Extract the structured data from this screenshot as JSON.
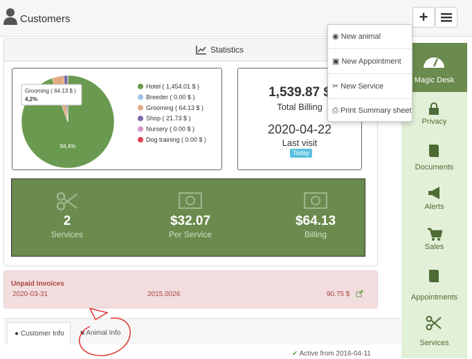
{
  "header": {
    "title": "Customers"
  },
  "menu": {
    "items": [
      "New animal",
      "New Appointment",
      "New Service",
      "Print Summary sheet"
    ]
  },
  "sidebar": {
    "items": [
      "Magic Desk",
      "Privacy",
      "Documents",
      "Alerts",
      "Sales",
      "Appointments",
      "Services"
    ]
  },
  "statistics": {
    "title": "Statistics",
    "chart_data": {
      "type": "pie",
      "legend_labels": [
        "Hotel ( 1,454.01 $ )",
        "Breeder ( 0.00 $ )",
        "Grooming ( 64.13 $ )",
        "Shop ( 21.73 $ )",
        "Nursery ( 0.00 $ )",
        "Dog training ( 0.00 $ )"
      ],
      "values": [
        1454.01,
        0,
        64.13,
        21.73,
        0,
        0
      ],
      "colors": [
        "#6a9a4f",
        "#9cc3e6",
        "#e3aa82",
        "#7b68a8",
        "#d49ac9",
        "#e04050"
      ],
      "slice_label": "94,4%",
      "tooltip": {
        "title": "Grooming ( 64.13 $ )",
        "value": "4,2%"
      }
    },
    "billing": {
      "total": "1,539.87 $",
      "total_label": "Total Billing",
      "last_visit": "2020-04-22",
      "last_visit_label": "Last visit",
      "badge": "Today"
    },
    "summary": [
      {
        "value": "2",
        "label": "Services"
      },
      {
        "value": "$32.07",
        "label": "Per Service"
      },
      {
        "value": "$64.13",
        "label": "Billing"
      }
    ]
  },
  "invoices": {
    "title": "Unpaid Invoices",
    "rows": [
      [
        "2020-03-31",
        "2015.0026",
        "90.75 $"
      ]
    ]
  },
  "tabs": [
    "Customer Info",
    "Animal Info"
  ],
  "status": "Active from 2016-04-11"
}
